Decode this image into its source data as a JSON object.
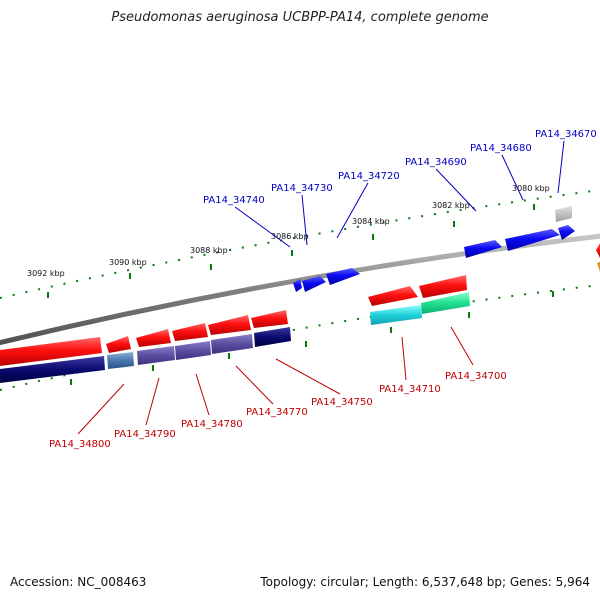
{
  "title": "Pseudomonas aeruginosa UCBPP-PA14, complete genome",
  "accession": "Accession: NC_008463",
  "topology": "Topology: circular; Length: 6,537,648 bp; Genes: 5,964",
  "kbp_labels": [
    "3080 kbp",
    "3082 kbp",
    "3084 kbp",
    "3086 kbp",
    "3088 kbp",
    "3090 kbp",
    "3092 kbp"
  ],
  "top_gene_labels": [
    "PA14_34670",
    "PA14_34680",
    "PA14_34690",
    "PA14_34720",
    "PA14_34730",
    "PA14_34740"
  ],
  "bottom_gene_labels": [
    "PA14_34700",
    "PA14_34710",
    "PA14_34750",
    "PA14_34770",
    "PA14_34780",
    "PA14_34790",
    "PA14_34800"
  ],
  "colors": {
    "forward_gene": "#0000ee",
    "reverse_gene": "#ee0000",
    "backbone": "#808080",
    "tick": "#0a7a0a",
    "label_top": "#0000c0",
    "label_bottom": "#c00000"
  }
}
